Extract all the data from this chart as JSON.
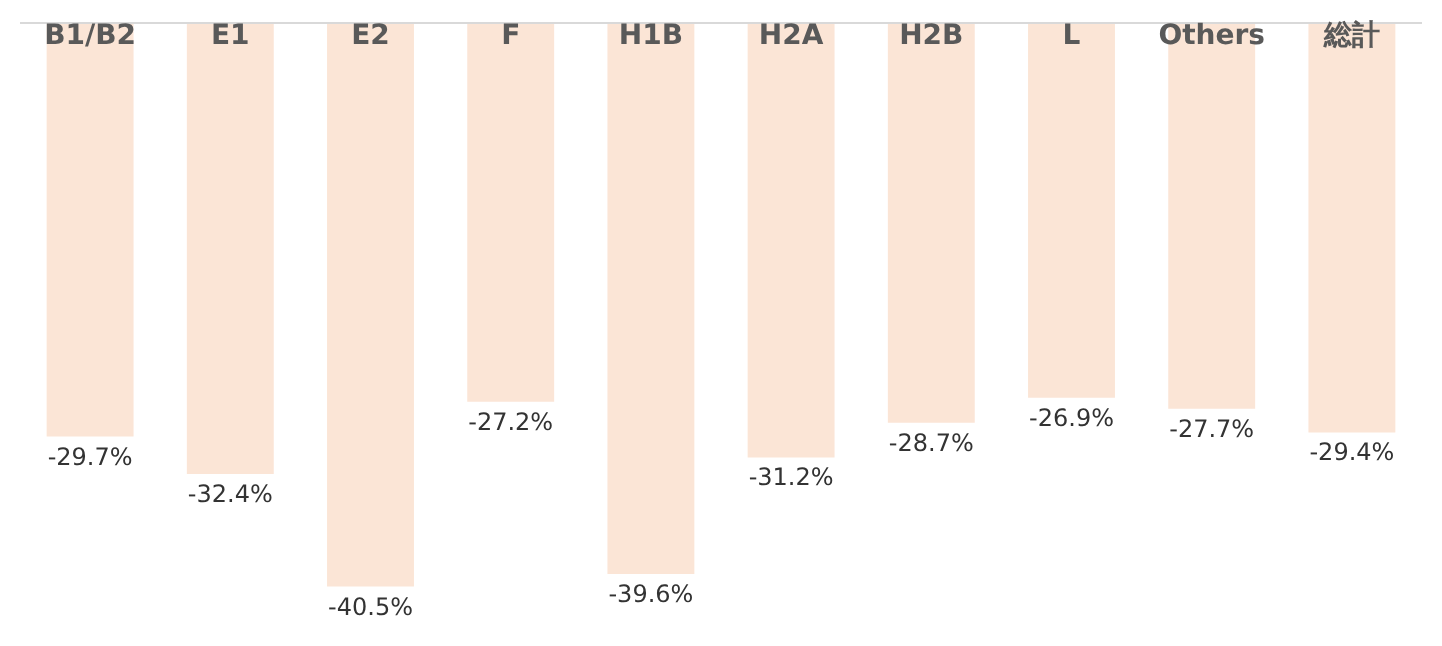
{
  "chart_data": {
    "type": "bar",
    "categories": [
      "B1/B2",
      "E1",
      "E2",
      "F",
      "H1B",
      "H2A",
      "H2B",
      "L",
      "Others",
      "総計"
    ],
    "values": [
      -29.7,
      -32.4,
      -40.5,
      -27.2,
      -39.6,
      -31.2,
      -28.7,
      -26.9,
      -27.7,
      -29.4
    ],
    "value_labels": [
      "-29.7%",
      "-32.4%",
      "-40.5%",
      "-27.2%",
      "-39.6%",
      "-31.2%",
      "-28.7%",
      "-26.9%",
      "-27.7%",
      "-29.4%"
    ],
    "color": "#fbe5d6",
    "legend": false
  }
}
